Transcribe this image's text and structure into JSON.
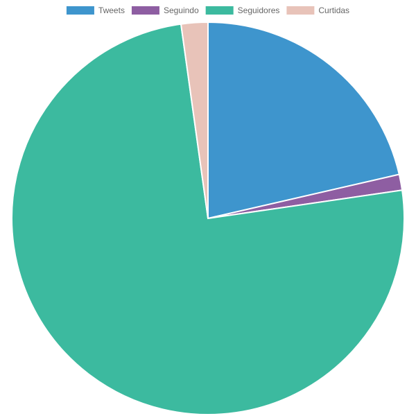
{
  "chart_data": {
    "type": "pie",
    "categories": [
      "Tweets",
      "Seguindo",
      "Seguidores",
      "Curtidas"
    ],
    "values": [
      21.4,
      1.3,
      75.1,
      2.2
    ],
    "colors": [
      "#3e95cd",
      "#8e5ea2",
      "#3cba9f",
      "#e8c3b9"
    ],
    "legend": "top"
  }
}
